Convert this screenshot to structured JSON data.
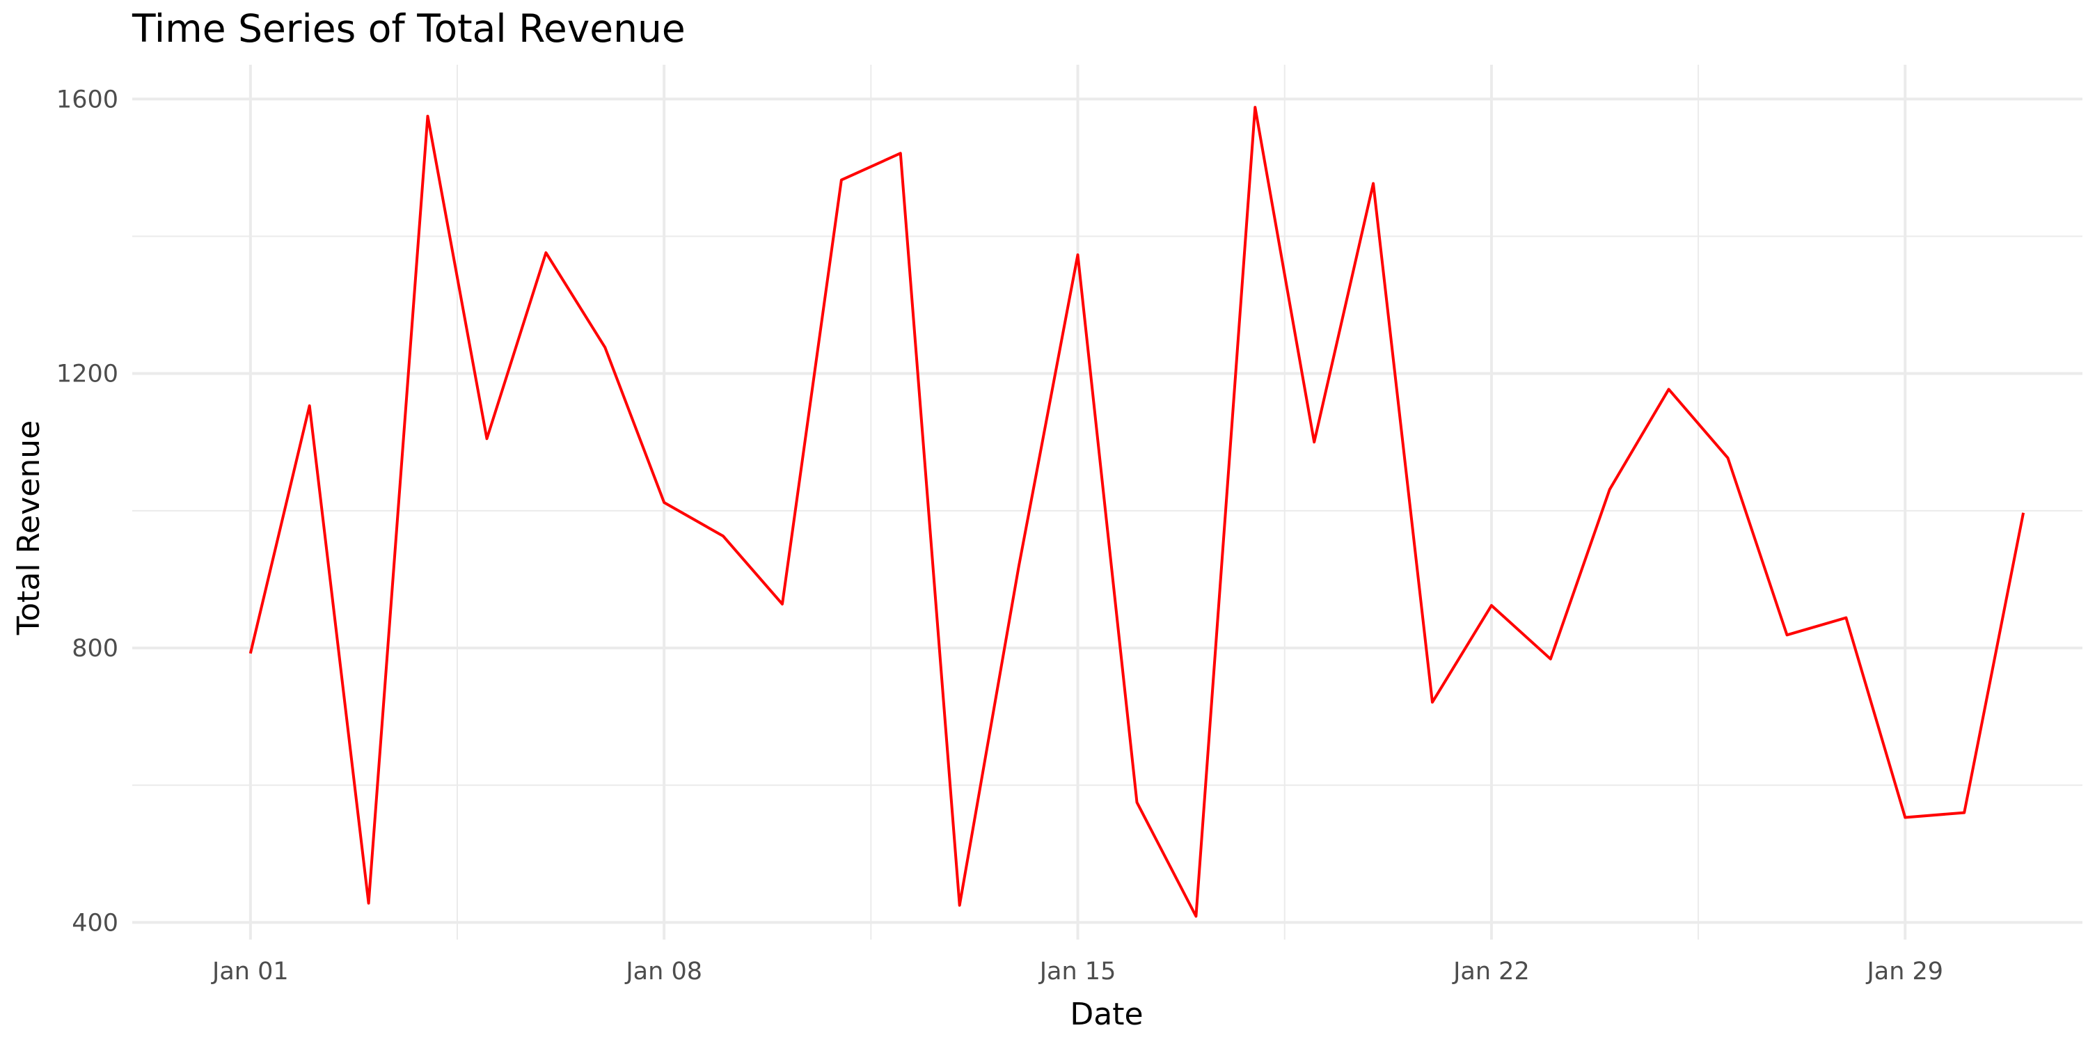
{
  "chart_data": {
    "type": "line",
    "title": "Time Series of Total Revenue",
    "xlabel": "Date",
    "ylabel": "Total Revenue",
    "x_tick_labels": [
      "Jan 01",
      "Jan 08",
      "Jan 15",
      "Jan 22",
      "Jan 29"
    ],
    "x_tick_dates": [
      "2024-01-01",
      "2024-01-08",
      "2024-01-15",
      "2024-01-22",
      "2024-01-29"
    ],
    "y_ticks": [
      400,
      800,
      1200,
      1600
    ],
    "ylim": [
      375,
      1650
    ],
    "xlim": [
      "2023-12-30",
      "2024-02-01"
    ],
    "grid": true,
    "line_color": "#ff0000",
    "series": [
      {
        "x": [
          "2024-01-01",
          "2024-01-02",
          "2024-01-03",
          "2024-01-04",
          "2024-01-05",
          "2024-01-06",
          "2024-01-07",
          "2024-01-08",
          "2024-01-09",
          "2024-01-10",
          "2024-01-11",
          "2024-01-12",
          "2024-01-13",
          "2024-01-14",
          "2024-01-15",
          "2024-01-16",
          "2024-01-17",
          "2024-01-18",
          "2024-01-19",
          "2024-01-20",
          "2024-01-21",
          "2024-01-22",
          "2024-01-23",
          "2024-01-24",
          "2024-01-25",
          "2024-01-26",
          "2024-01-27",
          "2024-01-28",
          "2024-01-29",
          "2024-01-30",
          "2024-01-31"
        ],
        "values": [
          792,
          1153,
          428,
          1575,
          1105,
          1376,
          1238,
          1012,
          963,
          864,
          1482,
          1521,
          425,
          918,
          1373,
          575,
          409,
          1588,
          1100,
          1477,
          721,
          862,
          784,
          1031,
          1177,
          1077,
          819,
          844,
          553,
          560,
          997
        ]
      }
    ]
  }
}
